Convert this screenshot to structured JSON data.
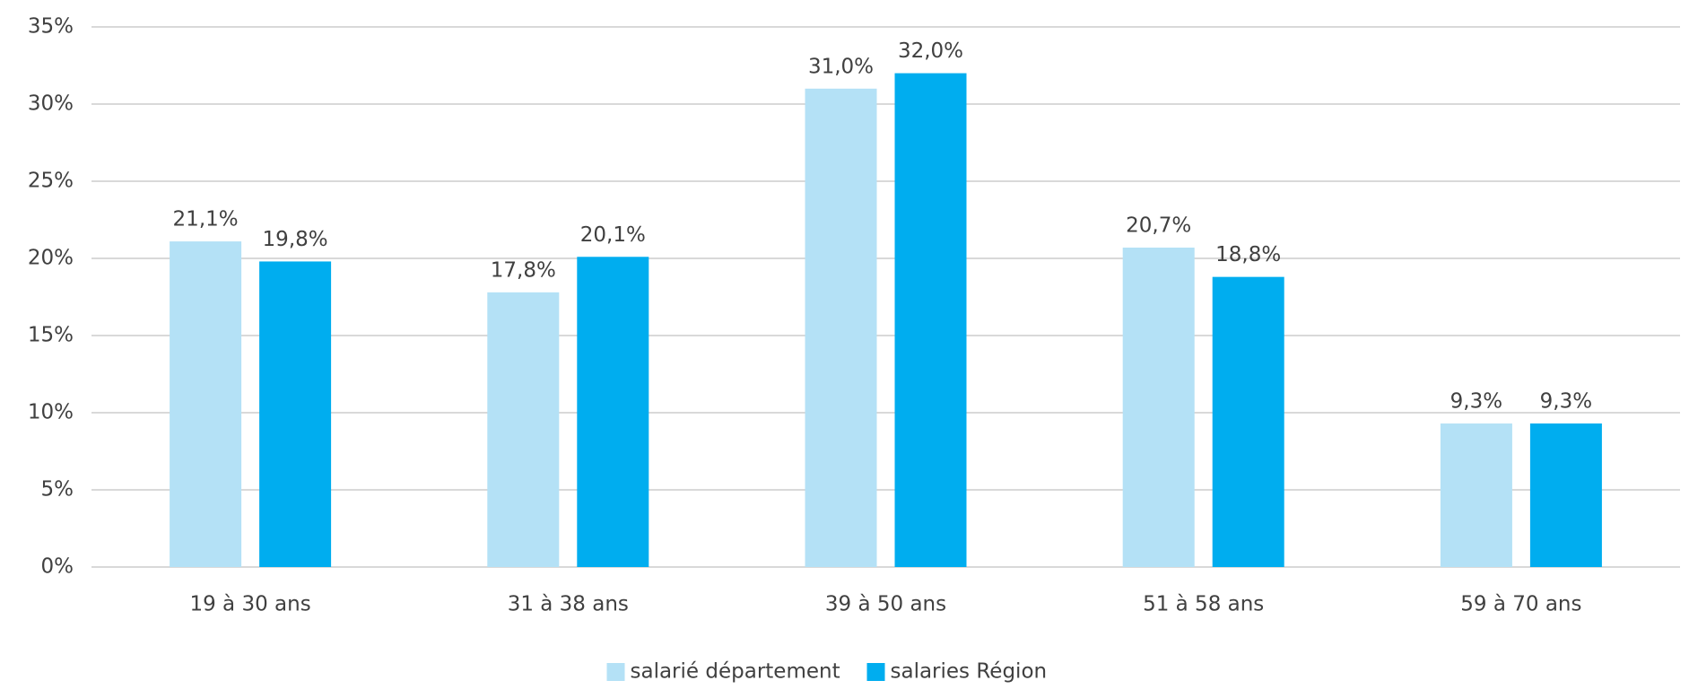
{
  "chart_data": {
    "type": "bar",
    "categories": [
      "19 à 30 ans",
      "31 à 38 ans",
      "39 à 50 ans",
      "51 à 58 ans",
      "59 à 70 ans"
    ],
    "series": [
      {
        "name": "salarié département",
        "color": "#b4e1f6",
        "values": [
          21.1,
          17.8,
          31.0,
          20.7,
          9.3
        ],
        "value_labels": [
          "21,1%",
          "17,8%",
          "31,0%",
          "20,7%",
          "9,3%"
        ]
      },
      {
        "name": "salaries Région",
        "color": "#00adef",
        "values": [
          19.8,
          20.1,
          32.0,
          18.8,
          9.3
        ],
        "value_labels": [
          "19,8%",
          "20,1%",
          "32,0%",
          "18,8%",
          "9,3%"
        ]
      }
    ],
    "ylim": [
      0,
      35
    ],
    "yticks": [
      {
        "value": 0,
        "label": "0%"
      },
      {
        "value": 5,
        "label": "5%"
      },
      {
        "value": 10,
        "label": "10%"
      },
      {
        "value": 15,
        "label": "15%"
      },
      {
        "value": 20,
        "label": "20%"
      },
      {
        "value": 25,
        "label": "25%"
      },
      {
        "value": 30,
        "label": "30%"
      },
      {
        "value": 35,
        "label": "35%"
      }
    ],
    "grid": true,
    "legend": "bottom"
  }
}
